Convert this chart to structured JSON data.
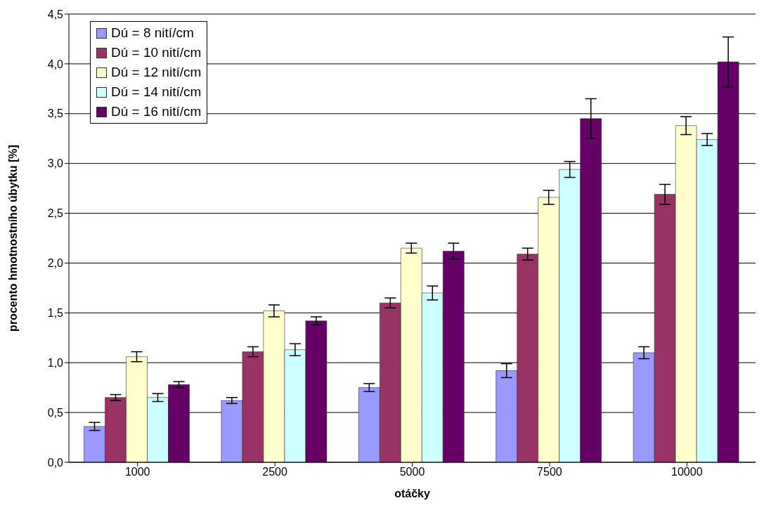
{
  "chart_data": {
    "type": "bar",
    "xlabel": "otáčky",
    "ylabel": "procento hmotnostního úbytku [%]",
    "categories": [
      "1000",
      "2500",
      "5000",
      "7500",
      "10000"
    ],
    "series": [
      {
        "name": "Dú = 8 nití/cm",
        "color": "#9999ff",
        "values": [
          0.36,
          0.62,
          0.75,
          0.92,
          1.1
        ],
        "errors": [
          0.04,
          0.03,
          0.04,
          0.07,
          0.06
        ]
      },
      {
        "name": "Dú = 10 nití/cm",
        "color": "#993366",
        "values": [
          0.65,
          1.11,
          1.6,
          2.09,
          2.69
        ],
        "errors": [
          0.03,
          0.05,
          0.05,
          0.06,
          0.1
        ]
      },
      {
        "name": "Dú = 12 nití/cm",
        "color": "#ffffcc",
        "values": [
          1.06,
          1.52,
          2.15,
          2.66,
          3.38
        ],
        "errors": [
          0.05,
          0.06,
          0.05,
          0.07,
          0.09
        ]
      },
      {
        "name": "Dú = 14 nití/cm",
        "color": "#ccffff",
        "values": [
          0.65,
          1.13,
          1.7,
          2.94,
          3.24
        ],
        "errors": [
          0.04,
          0.06,
          0.07,
          0.08,
          0.06
        ]
      },
      {
        "name": "Dú = 16 nití/cm",
        "color": "#660066",
        "values": [
          0.78,
          1.42,
          2.12,
          3.45,
          4.02
        ],
        "errors": [
          0.03,
          0.04,
          0.08,
          0.2,
          0.25
        ]
      }
    ],
    "ylim": [
      0,
      4.5
    ],
    "yticks": [
      {
        "value": 0,
        "label": "0,0"
      },
      {
        "value": 0.5,
        "label": "0,5"
      },
      {
        "value": 1,
        "label": "1,0"
      },
      {
        "value": 1.5,
        "label": "1,5"
      },
      {
        "value": 2,
        "label": "2,0"
      },
      {
        "value": 2.5,
        "label": "2,5"
      },
      {
        "value": 3,
        "label": "3,0"
      },
      {
        "value": 3.5,
        "label": "3,5"
      },
      {
        "value": 4,
        "label": "4,0"
      },
      {
        "value": 4.5,
        "label": "4,5"
      }
    ],
    "grid": "y",
    "legend": "top left"
  }
}
